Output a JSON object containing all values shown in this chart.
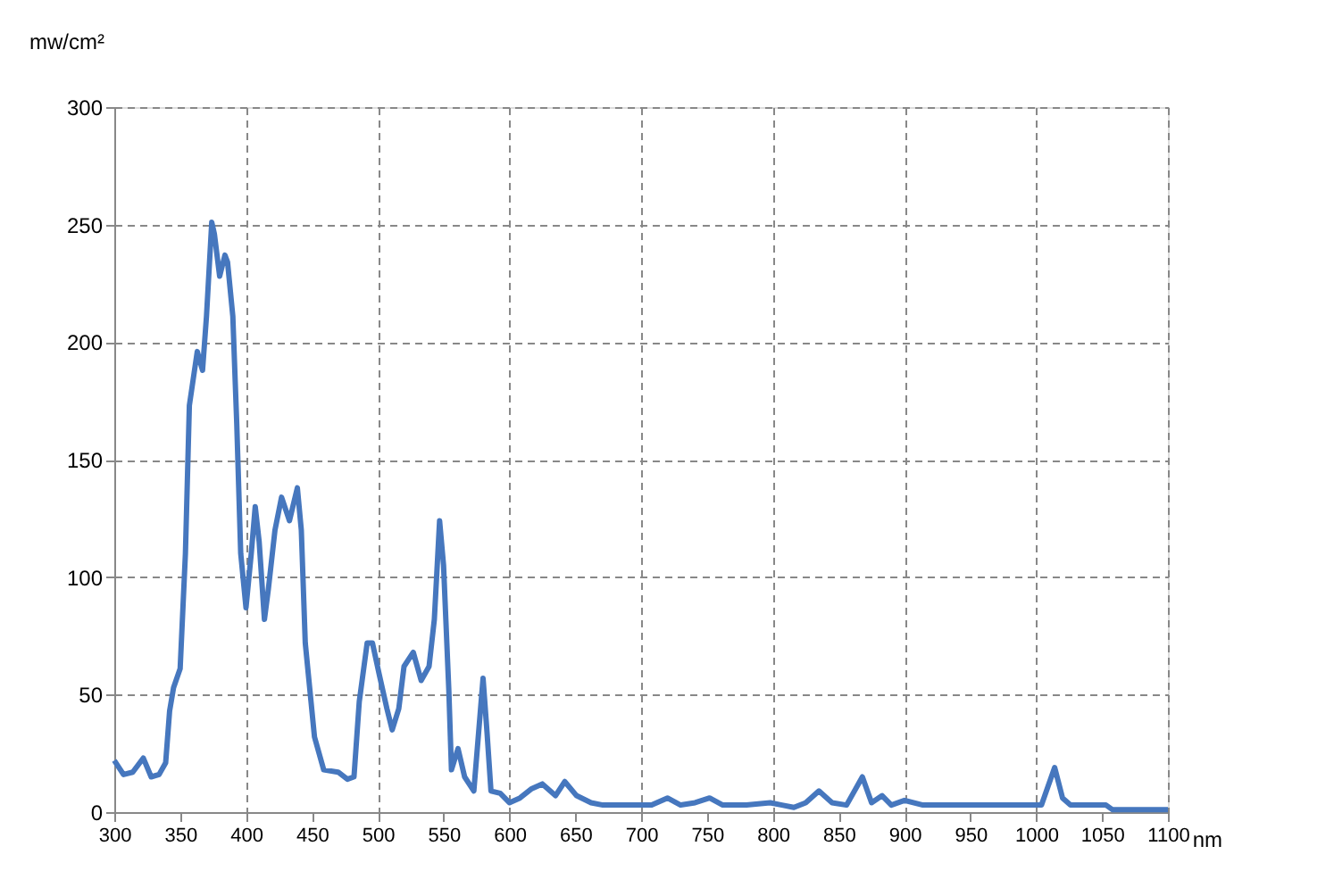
{
  "chart_data": {
    "type": "line",
    "xlabel": "nm",
    "ylabel": "mw/cm²",
    "x": [
      300,
      307,
      314,
      322,
      328,
      334,
      339,
      342,
      345,
      350,
      354,
      357,
      363,
      367,
      370,
      374,
      376,
      380,
      384,
      386,
      390,
      393,
      396,
      400,
      404,
      407,
      410,
      414,
      417,
      422,
      427,
      433,
      439,
      442,
      445,
      452,
      459,
      470,
      477,
      482,
      486,
      492,
      496,
      501,
      507,
      511,
      516,
      520,
      527,
      533,
      539,
      543,
      547,
      550,
      554,
      556,
      561,
      566,
      573,
      580,
      583,
      586,
      593,
      600,
      608,
      617,
      625,
      635,
      642,
      651,
      662,
      671,
      685,
      708,
      720,
      730,
      741,
      752,
      762,
      780,
      798,
      807,
      816,
      825,
      835,
      845,
      856,
      868,
      875,
      883,
      890,
      900,
      914,
      968,
      1004,
      1014,
      1020,
      1026,
      1053,
      1058,
      1100
    ],
    "series": [
      {
        "color": "#4677be",
        "values": [
          22,
          16,
          17,
          23,
          15,
          16,
          21,
          43,
          53,
          61,
          110,
          173,
          196,
          188,
          211,
          251,
          246,
          228,
          237,
          234,
          211,
          165,
          110,
          87,
          110,
          130,
          115,
          82,
          95,
          120,
          134,
          124,
          138,
          120,
          72,
          32,
          18,
          17,
          14,
          15,
          47,
          72,
          72,
          59,
          44,
          35,
          44,
          62,
          68,
          56,
          62,
          82,
          124,
          105,
          52,
          18,
          27,
          15,
          9,
          57,
          34,
          9,
          8,
          4,
          6,
          10,
          12,
          7,
          13,
          7,
          4,
          3,
          3,
          3,
          6,
          3,
          4,
          6,
          3,
          3,
          4,
          3,
          2,
          4,
          9,
          4,
          3,
          15,
          4,
          7,
          3,
          5,
          3,
          3,
          3,
          19,
          6,
          3,
          3,
          1,
          1
        ]
      }
    ],
    "xlim": [
      300,
      1100
    ],
    "xticks": [
      300,
      350,
      400,
      450,
      500,
      550,
      600,
      650,
      700,
      750,
      800,
      850,
      900,
      950,
      1000,
      1050,
      1100
    ],
    "ylim": [
      0,
      300
    ],
    "yticks": [
      0,
      50,
      100,
      150,
      200,
      250,
      300
    ],
    "grid": true,
    "marker": "none",
    "line_style": "solid",
    "legend": false
  }
}
